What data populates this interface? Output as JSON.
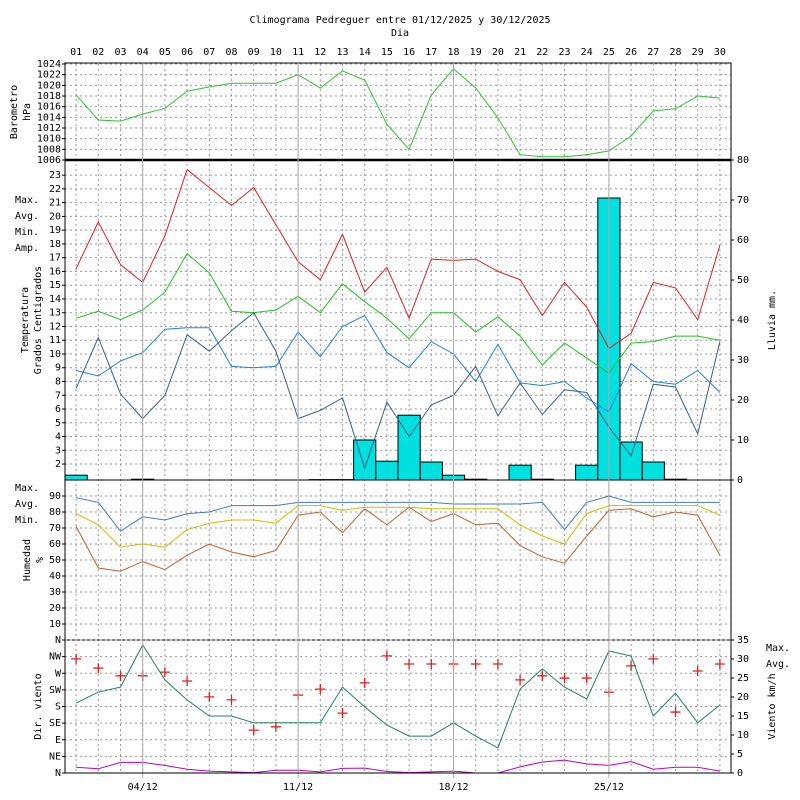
{
  "title": "Climograma Pedreguer entre 01/12/2025 y 30/12/2025",
  "subtitle": "Dia",
  "chart_data": [
    {
      "type": "line",
      "ylabel": [
        "Barometro",
        "hPa"
      ],
      "ylabel_color": "#20a020",
      "categories": [
        "01",
        "02",
        "03",
        "04",
        "05",
        "06",
        "07",
        "08",
        "09",
        "10",
        "11",
        "12",
        "13",
        "14",
        "15",
        "16",
        "17",
        "18",
        "19",
        "20",
        "21",
        "22",
        "23",
        "24",
        "25",
        "26",
        "27",
        "28",
        "29",
        "30"
      ],
      "ylim": [
        1006,
        1024
      ],
      "yticks": [
        1006,
        1008,
        1010,
        1012,
        1014,
        1016,
        1018,
        1020,
        1022,
        1024
      ],
      "grid": true,
      "series": [
        {
          "color": "#30c030",
          "values": [
            1018.2,
            1013.5,
            1013.3,
            1014.6,
            1015.7,
            1018.9,
            1019.7,
            1020.4,
            1020.4,
            1020.4,
            1022,
            1019.5,
            1022.7,
            1021,
            1012.7,
            1008,
            1018.2,
            1023.1,
            1019.5,
            1013.9,
            1007,
            1006.6,
            1006.6,
            1007,
            1007.7,
            1010.5,
            1015.2,
            1015.6,
            1018,
            1017.6
          ]
        }
      ]
    },
    {
      "type": "line",
      "ylabel": [
        "Temperatura",
        "Grados Centigrados"
      ],
      "ylabel_color": "#e02020",
      "ylim": [
        0.84,
        24.1
      ],
      "yticks": [
        2,
        3,
        4,
        5,
        6,
        7,
        8,
        9,
        10,
        11,
        12,
        13,
        14,
        15,
        16,
        17,
        18,
        19,
        20,
        21,
        22,
        23
      ],
      "grid": true,
      "legend": "left",
      "y2label": "Lluvia mm.",
      "y2label_color": "#00d0d0",
      "y2lim": [
        0,
        80
      ],
      "y2ticks": [
        0,
        10,
        20,
        30,
        40,
        50,
        60,
        70,
        80
      ],
      "series": [
        {
          "type": "bar",
          "axis": "y2",
          "color": "#00e0e0",
          "values": [
            1.2,
            0,
            0,
            0.2,
            0,
            0,
            0,
            0,
            0,
            0,
            0,
            0.1,
            0.1,
            10,
            4.7,
            16.2,
            4.5,
            1.2,
            0.2,
            0,
            3.7,
            0.2,
            0,
            3.7,
            70.5,
            9.5,
            4.5,
            0.2,
            0,
            0
          ]
        },
        {
          "name": "Max.",
          "color": "#e02020",
          "values": [
            16.2,
            19.6,
            16.5,
            15.2,
            18.6,
            23.4,
            22.1,
            20.8,
            22.1,
            19.4,
            16.7,
            15.4,
            18.7,
            14.5,
            16.3,
            12.6,
            16.9,
            16.8,
            16.9,
            16.0,
            15.4,
            12.8,
            15.2,
            13.4,
            10.4,
            11.5,
            15.2,
            14.8,
            12.5,
            17.9
          ]
        },
        {
          "name": "Avg.",
          "color": "#20c020",
          "values": [
            12.6,
            13.1,
            12.5,
            13.2,
            14.5,
            17.3,
            15.9,
            13.1,
            13.0,
            13.2,
            14.2,
            13.0,
            15.1,
            13.8,
            12.6,
            11.1,
            13.0,
            13.0,
            11.6,
            12.7,
            11.3,
            9.2,
            10.8,
            9.7,
            8.6,
            10.8,
            10.9,
            11.3,
            11.3,
            11.0
          ]
        },
        {
          "name": "Min.",
          "color": "#2080e0",
          "values": [
            8.8,
            8.4,
            9.5,
            10.1,
            11.8,
            11.9,
            11.9,
            9.1,
            9.0,
            9.1,
            11.6,
            9.8,
            12.0,
            12.8,
            10.1,
            9.0,
            10.9,
            10.0,
            8.0,
            10.7,
            7.9,
            7.7,
            8.0,
            6.8,
            5.8,
            9.3,
            8.0,
            7.8,
            8.8,
            7.2
          ]
        },
        {
          "name": "Amp.",
          "color": "#3a6080",
          "values": [
            7.5,
            11.2,
            7.1,
            5.3,
            7.0,
            11.4,
            10.2,
            11.7,
            13.0,
            10.2,
            5.3,
            5.9,
            6.8,
            1.7,
            6.5,
            4.0,
            6.3,
            7.0,
            9.1,
            5.5,
            7.9,
            5.6,
            7.4,
            7.2,
            4.7,
            2.6,
            7.8,
            7.6,
            4.2,
            10.9
          ]
        }
      ]
    },
    {
      "type": "line",
      "ylabel": [
        "Humedad",
        "%"
      ],
      "ylabel_color": "#c06030",
      "ylim": [
        0,
        100
      ],
      "yticks": [
        10,
        20,
        30,
        40,
        50,
        60,
        70,
        80,
        90
      ],
      "grid": true,
      "legend": "left",
      "series": [
        {
          "name": "Max.",
          "color": "#4477cc",
          "values": [
            89,
            86,
            68,
            77,
            75,
            79,
            80,
            84,
            84,
            84,
            86,
            86,
            86,
            86,
            86,
            86,
            86,
            85,
            85,
            85,
            85,
            86,
            69,
            86,
            90,
            86,
            86,
            86,
            86,
            86
          ]
        },
        {
          "name": "Avg.",
          "color": "#c8c000",
          "values": [
            79,
            72,
            58,
            60,
            58,
            69,
            73,
            75,
            75,
            73,
            84,
            84,
            81,
            83,
            83,
            83,
            82,
            82,
            82,
            82,
            72,
            65,
            60,
            79,
            84,
            84,
            84,
            84,
            84,
            78
          ]
        },
        {
          "name": "Min.",
          "color": "#c06030",
          "values": [
            71,
            45,
            43,
            49,
            44,
            53,
            60,
            55,
            52,
            56,
            78,
            80,
            67,
            82,
            72,
            83,
            74,
            79,
            72,
            73,
            59,
            52,
            48,
            65,
            81,
            82,
            77,
            80,
            78,
            53
          ]
        }
      ]
    },
    {
      "type": "line",
      "ylabel": [
        "Dir. viento"
      ],
      "ylabel_color": "#e02020",
      "ylim": [
        0,
        360
      ],
      "yticks": [
        {
          "value": 0,
          "label": "N"
        },
        {
          "value": 45,
          "label": "NE"
        },
        {
          "value": 90,
          "label": "E"
        },
        {
          "value": 135,
          "label": "SE"
        },
        {
          "value": 180,
          "label": "S"
        },
        {
          "value": 225,
          "label": "SW"
        },
        {
          "value": 270,
          "label": "W"
        },
        {
          "value": 315,
          "label": "NW"
        },
        {
          "value": 360,
          "label": "N"
        }
      ],
      "grid": true,
      "legend": "right",
      "y2label": "Viento km/h",
      "y2label_color": "#c000c0",
      "y2lim": [
        0,
        35
      ],
      "y2ticks": [
        0,
        5,
        10,
        15,
        20,
        25,
        30,
        35
      ],
      "xticks": [
        {
          "value": 4,
          "label": "04/12"
        },
        {
          "value": 11,
          "label": "11/12"
        },
        {
          "value": 18,
          "label": "18/12"
        },
        {
          "value": 25,
          "label": "25/12"
        }
      ],
      "series": [
        {
          "type": "scatter",
          "marker": "+",
          "color": "#e02020",
          "values": [
            309,
            284,
            263,
            263,
            273,
            249,
            206,
            198,
            116,
            125,
            211,
            227,
            162,
            244,
            317,
            295,
            295,
            295,
            295,
            295,
            252,
            263,
            257,
            257,
            219,
            290,
            309,
            165,
            276,
            295
          ]
        },
        {
          "name": "Max.",
          "axis": "y2",
          "color": "#208060",
          "values": [
            18.4,
            21.3,
            22.6,
            33.7,
            24.5,
            19.2,
            15,
            15,
            13.2,
            13.2,
            13.2,
            13.2,
            22.6,
            17.4,
            12.6,
            9.7,
            9.7,
            13.2,
            9.7,
            6.6,
            22.1,
            27.4,
            22.6,
            19.5,
            32.1,
            30.8,
            15,
            21,
            13.2,
            17.9
          ]
        },
        {
          "name": "Avg.",
          "axis": "y2",
          "color": "#c000c0",
          "values": [
            1.5,
            1.1,
            2.8,
            2.8,
            2.0,
            1.0,
            0.5,
            0.3,
            0.1,
            0.7,
            0.7,
            0.3,
            1.2,
            1.3,
            0.4,
            0.1,
            0.3,
            0.5,
            0,
            0,
            1.6,
            2.9,
            3.4,
            2.4,
            2.0,
            3.0,
            1.0,
            1.5,
            1.5,
            0.5
          ]
        }
      ]
    }
  ]
}
